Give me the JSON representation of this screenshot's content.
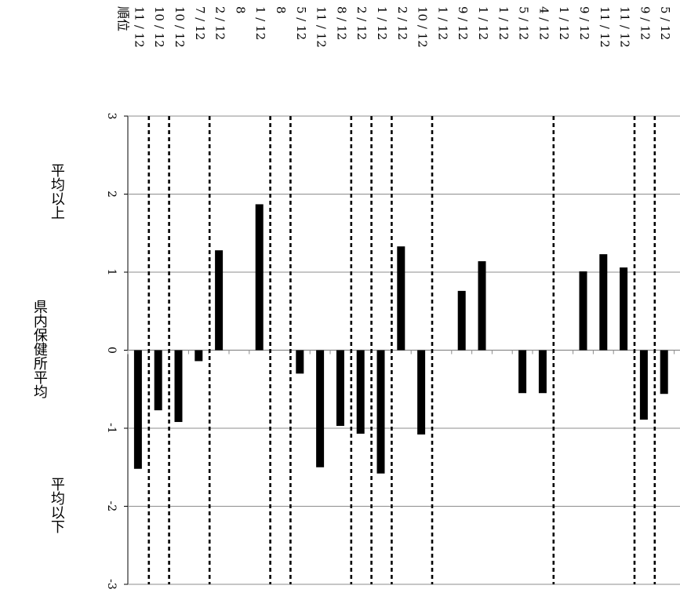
{
  "chart_data": {
    "type": "bar",
    "title": "",
    "ylim": [
      -3,
      3
    ],
    "y_ticks": [
      "3",
      "2",
      "1",
      "0",
      "-1",
      "-2",
      "-3"
    ],
    "grid": true,
    "side_labels": {
      "above": "平均以上",
      "center": [
        "県内",
        "保健所",
        "平均"
      ],
      "below": "平均以下"
    },
    "rank_header": "順位",
    "ranks": [
      "11 / 12",
      "10 / 12",
      "10 / 12",
      "7 / 12",
      "2 / 12",
      "8",
      "1 / 12",
      "8",
      "5 / 12",
      "11 / 12",
      "8 / 12",
      "2 / 12",
      "1 / 12",
      "2 / 12",
      "10 / 12",
      "1 / 12",
      "9 / 12",
      "1 / 12",
      "1 / 12",
      "5 / 12",
      "4 / 12",
      "1 / 12",
      "9 / 12",
      "11 / 12",
      "11 / 12",
      "9 / 12",
      "5 / 12"
    ],
    "values": [
      -1.52,
      -0.77,
      -0.92,
      -0.14,
      1.28,
      null,
      1.87,
      null,
      -0.3,
      -1.5,
      -0.97,
      -1.07,
      -1.58,
      1.33,
      -1.08,
      null,
      0.76,
      1.14,
      null,
      -0.55,
      -0.55,
      null,
      1.01,
      1.23,
      1.06,
      -0.89,
      -0.56
    ],
    "group_separators_after": [
      1,
      2,
      4,
      7,
      8,
      11,
      12,
      13,
      15,
      21,
      25,
      26
    ]
  }
}
